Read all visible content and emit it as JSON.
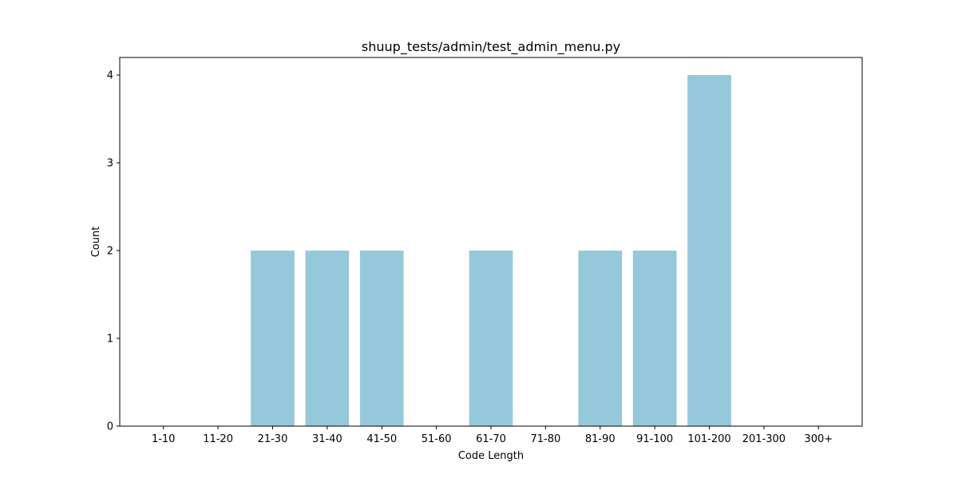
{
  "chart_data": {
    "type": "bar",
    "title": "shuup_tests/admin/test_admin_menu.py",
    "xlabel": "Code Length",
    "ylabel": "Count",
    "categories": [
      "1-10",
      "11-20",
      "21-30",
      "31-40",
      "41-50",
      "51-60",
      "61-70",
      "71-80",
      "81-90",
      "91-100",
      "101-200",
      "201-300",
      "300+"
    ],
    "values": [
      0,
      0,
      2,
      2,
      2,
      0,
      2,
      0,
      2,
      2,
      4,
      0,
      0
    ],
    "ylim": [
      0,
      4.2
    ],
    "yticks": [
      0,
      1,
      2,
      3,
      4
    ],
    "bar_color": "#96c8dc",
    "grid": false,
    "legend": false
  }
}
